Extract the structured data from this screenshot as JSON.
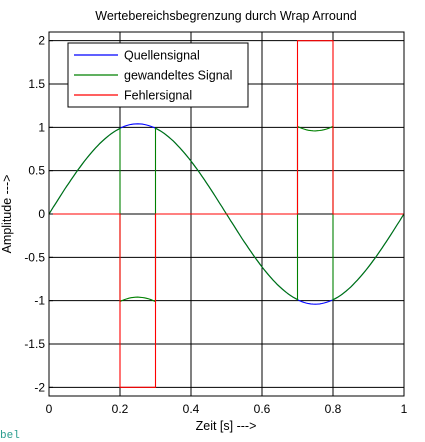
{
  "chart_data": {
    "type": "line",
    "title": "Wertebereichsbegrenzung durch Wrap Arround",
    "xlabel": "Zeit [s] --->",
    "ylabel": "Amplitude --->",
    "xlim": [
      0,
      1
    ],
    "ylim": [
      -2.1,
      2.1
    ],
    "x_ticks": [
      0,
      0.2,
      0.4,
      0.6,
      0.8,
      1
    ],
    "x_tick_labels": [
      "0",
      "0.2",
      "0.4",
      "0.6",
      "0.8",
      "1"
    ],
    "y_ticks": [
      2,
      1.5,
      1,
      0.5,
      0,
      -0.5,
      -1,
      -1.5,
      -2
    ],
    "y_tick_labels": [
      "2",
      "1.5",
      "1",
      "0.5",
      "0",
      "-0.5",
      "-1",
      "-1.5",
      "-2"
    ],
    "grid": true,
    "legend_position": "top-left",
    "series": [
      {
        "name": "Quellensignal",
        "color": "#0000ff",
        "x": [
          0,
          0.05,
          0.1,
          0.15,
          0.2,
          0.25,
          0.3,
          0.35,
          0.4,
          0.45,
          0.5,
          0.55,
          0.6,
          0.65,
          0.7,
          0.75,
          0.8,
          0.85,
          0.9,
          0.95,
          1.0
        ],
        "y": [
          0,
          0.32,
          0.61,
          0.84,
          0.99,
          1.04,
          0.99,
          0.84,
          0.61,
          0.32,
          0,
          -0.32,
          -0.61,
          -0.84,
          -0.99,
          -1.04,
          -0.99,
          -0.84,
          -0.61,
          -0.32,
          0
        ]
      },
      {
        "name": "gewandeltes Signal",
        "color": "#008000",
        "x": [
          0,
          0.05,
          0.1,
          0.15,
          0.2,
          0.2,
          0.25,
          0.3,
          0.3,
          0.35,
          0.4,
          0.45,
          0.5,
          0.55,
          0.6,
          0.65,
          0.7,
          0.7,
          0.75,
          0.8,
          0.8,
          0.85,
          0.9,
          0.95,
          1.0
        ],
        "y": [
          0,
          0.32,
          0.61,
          0.84,
          0.99,
          -1.01,
          -0.96,
          -1.01,
          0.99,
          0.84,
          0.61,
          0.32,
          0,
          -0.32,
          -0.61,
          -0.84,
          -0.99,
          1.01,
          0.96,
          1.01,
          -0.99,
          -0.84,
          -0.61,
          -0.32,
          0
        ]
      },
      {
        "name": "Fehlersignal",
        "color": "#ff0000",
        "x": [
          0,
          0.2,
          0.2,
          0.3,
          0.3,
          0.7,
          0.7,
          0.8,
          0.8,
          1.0
        ],
        "y": [
          0,
          0,
          -2,
          -2,
          0,
          0,
          2,
          2,
          0,
          0
        ]
      }
    ]
  },
  "footer_text": "bel"
}
